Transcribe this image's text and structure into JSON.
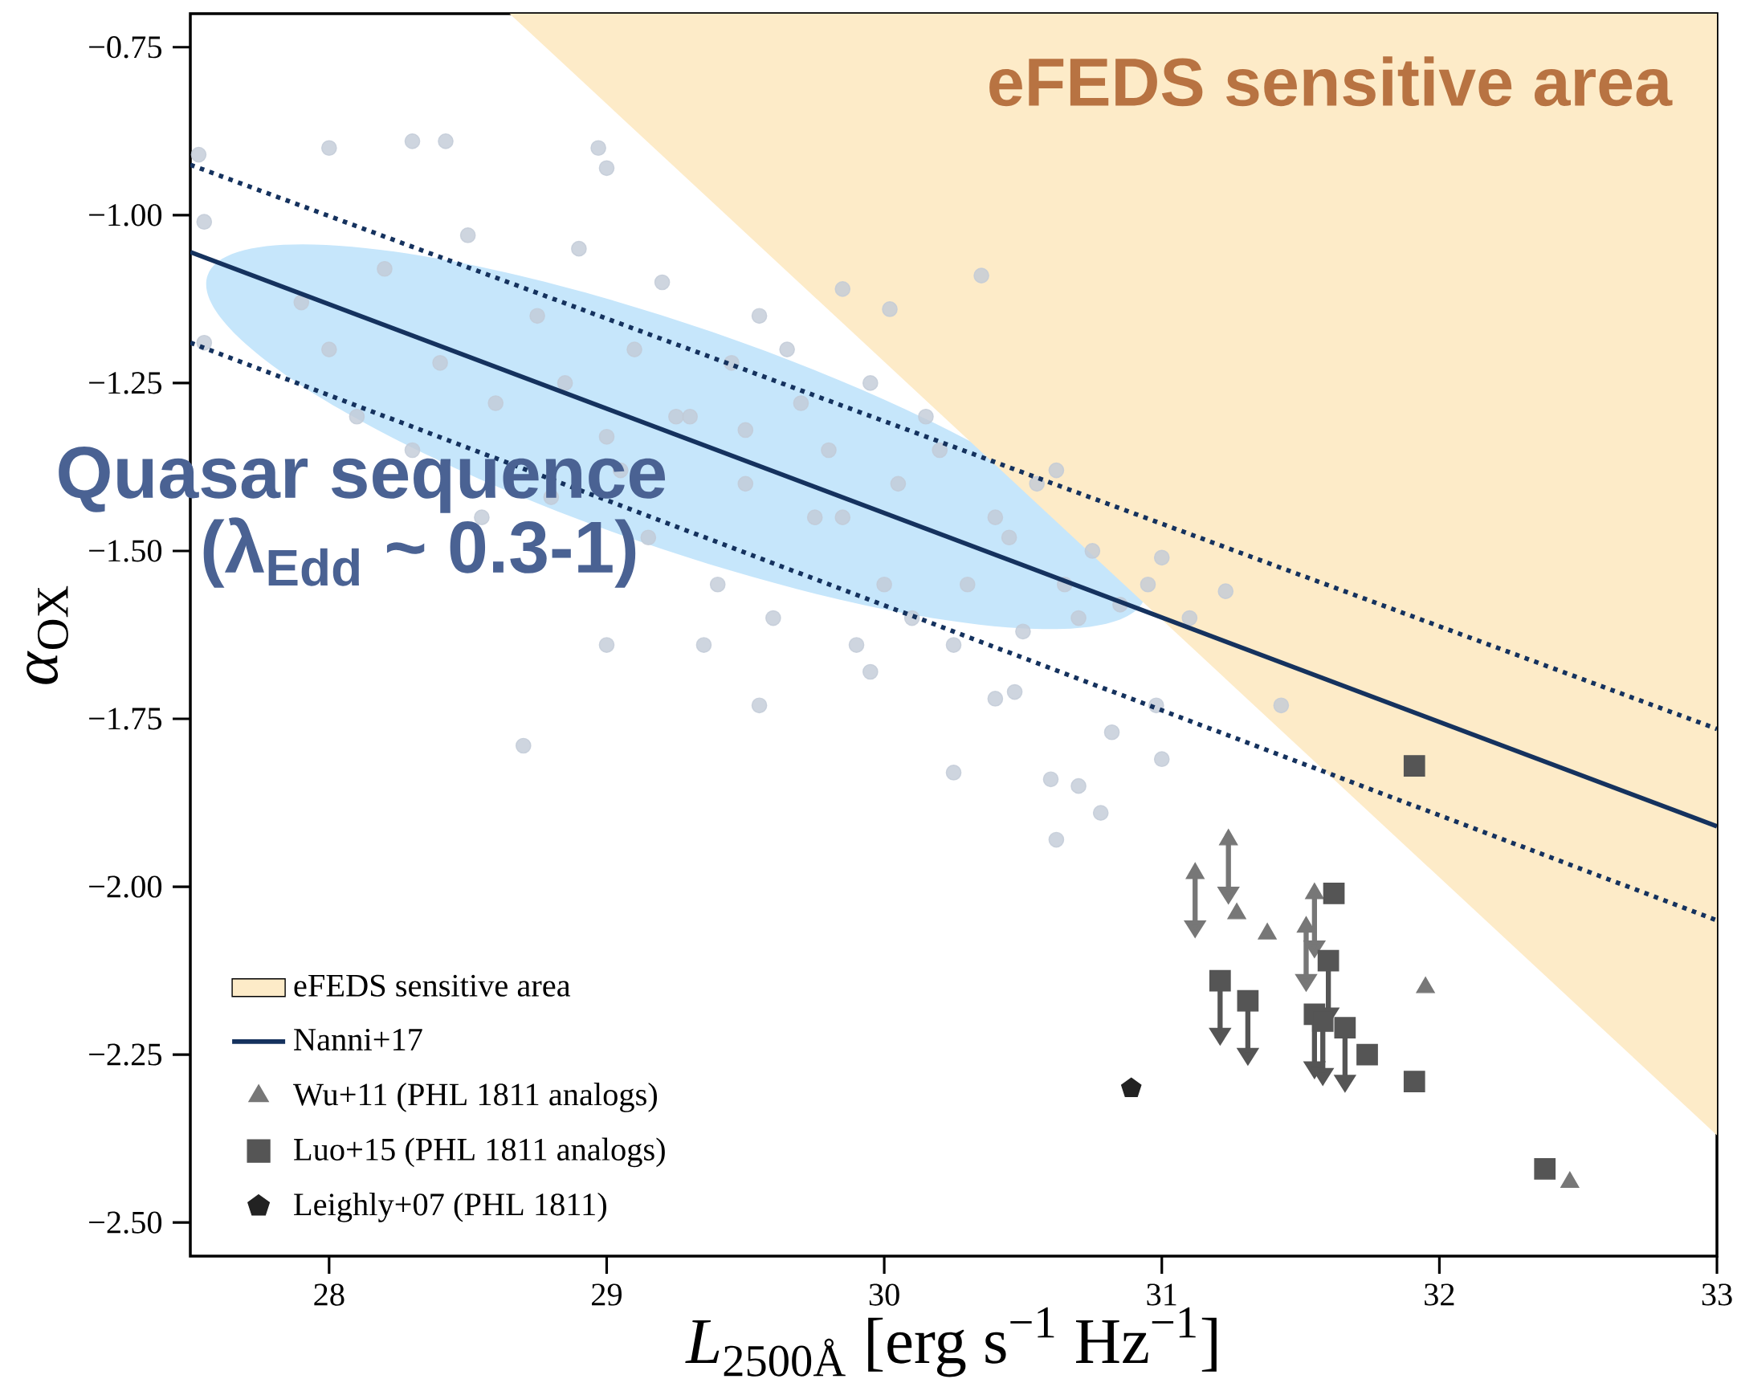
{
  "chart_data": {
    "type": "scatter",
    "xlabel": "*L*$_{2500Å}$ [erg s$^{−1}$ Hz$^{−1}$]",
    "ylabel": "*α*$_{OX}$",
    "annotations": [
      "eFEDS sensitive area",
      "Quasar sequence",
      "(λ$_{Edd}$ ~ 0.3-1)"
    ],
    "xlim": [
      27.5,
      33
    ],
    "ylim": [
      -2.55,
      -0.7
    ],
    "xticks": [
      28,
      29,
      30,
      31,
      32,
      33
    ],
    "yticks": [
      {
        "value": -0.75,
        "label": "−0.75"
      },
      {
        "value": -1.0,
        "label": "−1.00"
      },
      {
        "value": -1.25,
        "label": "−1.25"
      },
      {
        "value": -1.5,
        "label": "−1.50"
      },
      {
        "value": -1.75,
        "label": "−1.75"
      },
      {
        "value": -2.0,
        "label": "−2.00"
      },
      {
        "value": -2.25,
        "label": "−2.25"
      },
      {
        "value": -2.5,
        "label": "−2.50"
      }
    ],
    "legend": "bottom left",
    "series": [
      {
        "name": "eFEDS sensitive area",
        "type": "area",
        "color": "#fdebc8",
        "x": [
          28.65,
          33
        ],
        "values": [
          -0.7,
          -2.37
        ]
      },
      {
        "color": "#c2cbd7",
        "marker": "circle",
        "x": [
          27.53,
          27.55,
          27.55,
          28.0,
          28.3,
          28.42,
          28.97,
          29.0,
          30.35,
          30.02,
          29.85,
          28.7,
          29.0,
          29.55,
          30.25,
          30.6,
          30.62,
          30.78,
          30.7,
          30.82,
          31.0,
          30.98,
          31.1,
          31.23,
          31.43,
          30.47,
          30.4,
          30.62,
          31.0,
          30.95,
          27.9,
          28.0,
          28.2,
          28.3,
          28.5,
          28.6,
          28.75,
          28.8,
          28.9,
          29.0,
          29.1,
          29.15,
          29.2,
          29.3,
          29.4,
          29.45,
          29.5,
          29.55,
          29.6,
          29.7,
          29.75,
          29.8,
          29.9,
          29.95,
          30.05,
          30.1,
          30.2,
          30.3,
          30.4,
          30.5,
          30.55,
          30.65,
          30.75,
          30.85,
          28.1,
          28.4,
          28.55,
          28.85,
          29.05,
          29.25,
          29.35,
          29.65,
          29.85,
          30.0,
          30.15,
          30.25,
          30.45,
          30.7,
          29.5,
          29.95
        ],
        "values": [
          -0.91,
          -1.01,
          -1.19,
          -0.9,
          -0.89,
          -0.89,
          -0.9,
          -0.93,
          -1.09,
          -1.14,
          -1.11,
          -1.79,
          -1.64,
          -1.73,
          -1.83,
          -1.84,
          -1.93,
          -1.89,
          -1.85,
          -1.77,
          -1.81,
          -1.73,
          -1.6,
          -1.56,
          -1.73,
          -1.71,
          -1.72,
          -1.38,
          -1.51,
          -1.55,
          -1.13,
          -1.2,
          -1.08,
          -1.35,
          -1.03,
          -1.28,
          -1.15,
          -1.42,
          -1.05,
          -1.33,
          -1.2,
          -1.48,
          -1.1,
          -1.3,
          -1.55,
          -1.22,
          -1.4,
          -1.15,
          -1.6,
          -1.28,
          -1.45,
          -1.35,
          -1.64,
          -1.25,
          -1.4,
          -1.6,
          -1.35,
          -1.55,
          -1.45,
          -1.62,
          -1.4,
          -1.55,
          -1.5,
          -1.58,
          -1.3,
          -1.22,
          -1.45,
          -1.25,
          -1.38,
          -1.3,
          -1.64,
          -1.2,
          -1.45,
          -1.55,
          -1.3,
          -1.64,
          -1.48,
          -1.6,
          -1.32,
          -1.68
        ]
      },
      {
        "name": "Nanni+17",
        "type": "line",
        "color": "#15325e",
        "line_style": "solid",
        "x": [
          27.5,
          33
        ],
        "values": [
          -1.055,
          -1.91
        ]
      },
      {
        "type": "line",
        "color": "#15325e",
        "line_style": "dotted",
        "x": [
          27.5,
          33
        ],
        "values": [
          -0.925,
          -1.765
        ]
      },
      {
        "type": "line",
        "color": "#15325e",
        "line_style": "dotted",
        "x": [
          27.5,
          33
        ],
        "values": [
          -1.19,
          -2.05
        ]
      },
      {
        "name": "Wu+11 (PHL 1811 analogs)",
        "color": "#777777",
        "marker": "triangle",
        "x": [
          31.12,
          31.24,
          31.27,
          31.38,
          31.52,
          31.55,
          31.95,
          32.47
        ],
        "values": [
          -1.98,
          -1.93,
          -2.04,
          -2.07,
          -2.06,
          -2.01,
          -2.15,
          -2.44
        ],
        "errors": [
          [
            -2.05,
            -1.98
          ],
          [
            -2.0,
            -1.93
          ],
          null,
          null,
          [
            -2.13,
            -2.06
          ],
          [
            -2.08,
            -2.01
          ],
          null,
          null
        ]
      },
      {
        "name": "Luo+15 (PHL 1811 analogs)",
        "color": "#555555",
        "marker": "square",
        "x": [
          31.91,
          31.62,
          31.6,
          31.21,
          31.31,
          31.55,
          31.58,
          31.66,
          31.74,
          31.91,
          32.38
        ],
        "values": [
          -1.82,
          -2.01,
          -2.11,
          -2.14,
          -2.17,
          -2.19,
          -2.2,
          -2.21,
          -2.25,
          -2.29,
          -2.42
        ],
        "errors": [
          null,
          null,
          [
            -2.18,
            -2.11
          ],
          [
            -2.21,
            -2.14
          ],
          [
            -2.24,
            -2.17
          ],
          [
            -2.26,
            -2.19
          ],
          [
            -2.27,
            -2.2
          ],
          [
            -2.28,
            -2.21
          ],
          null,
          null,
          null
        ]
      },
      {
        "name": "Leighly+07 (PHL 1811)",
        "color": "#222222",
        "x": [
          30.89
        ],
        "values": [
          -2.3
        ]
      }
    ]
  }
}
